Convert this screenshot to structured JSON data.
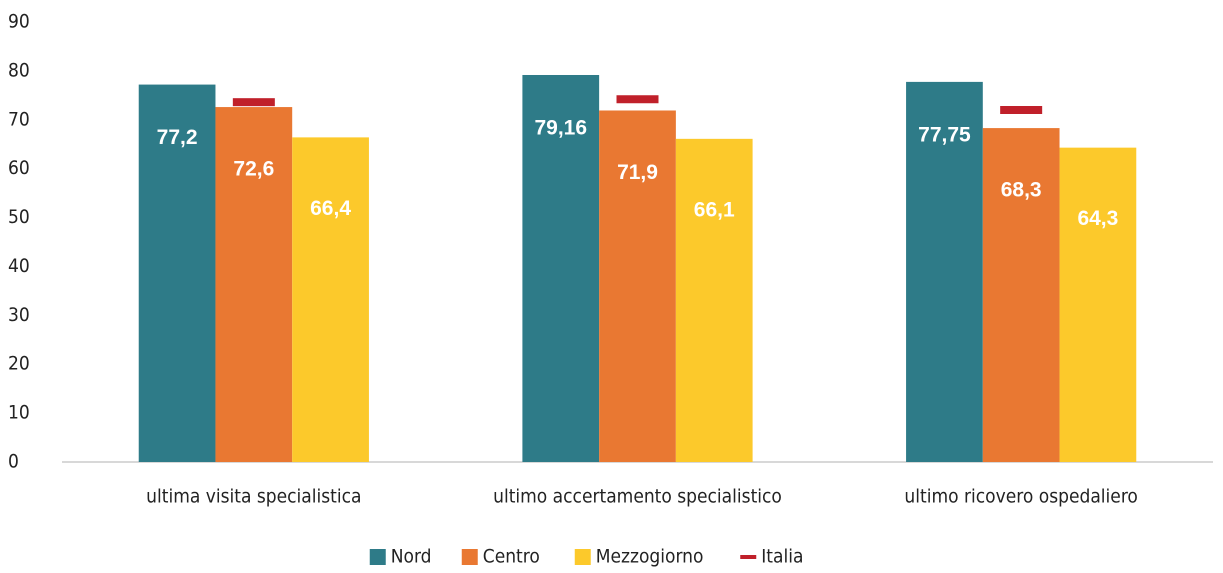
{
  "chart_data": {
    "type": "bar",
    "categories": [
      "ultima visita specialistica",
      "ultimo accertamento specialistico",
      "ultimo ricovero ospedaliero"
    ],
    "series": [
      {
        "name": "Nord",
        "color": "#2e7b88",
        "values": [
          77.2,
          79.16,
          77.75
        ],
        "value_labels": [
          "77,2",
          "79,16",
          "77,75"
        ]
      },
      {
        "name": "Centro",
        "color": "#e97832",
        "values": [
          72.6,
          71.9,
          68.3
        ],
        "value_labels": [
          "72,6",
          "71,9",
          "68,3"
        ]
      },
      {
        "name": "Mezzogiorno",
        "color": "#fcc92b",
        "values": [
          66.4,
          66.1,
          64.3
        ],
        "value_labels": [
          "66,4",
          "66,1",
          "64,3"
        ]
      },
      {
        "name": "Italia",
        "color": "#c0202a",
        "style": "dash",
        "values": [
          73.6,
          74.2,
          72.0
        ]
      }
    ],
    "ylim": [
      0,
      90
    ],
    "yticks": [
      0,
      10,
      20,
      30,
      40,
      50,
      60,
      70,
      80,
      90
    ],
    "grid": false,
    "legend": "bottom"
  }
}
